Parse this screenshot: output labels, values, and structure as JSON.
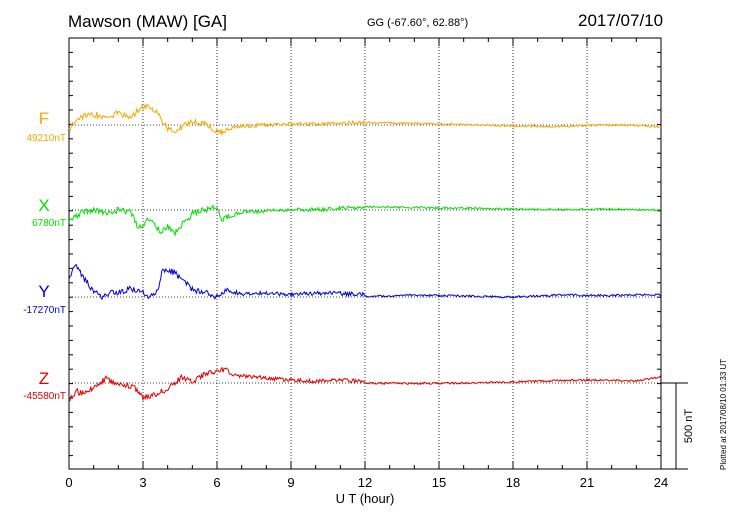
{
  "header": {
    "station": "Mawson (MAW)  [GA]",
    "coords": "GG (-67.60°,  62.88°)",
    "date": "2017/07/10"
  },
  "side_note": "Plotted at 2017/08/10 01:33 UT",
  "colors": {
    "F": "#f5a800",
    "X": "#00e000",
    "Y": "#0000d8",
    "Z": "#e00000"
  },
  "chart_data": {
    "type": "line",
    "title": "Mawson (MAW)  [GA]",
    "xlabel": "U T (hour)",
    "xlim": [
      0,
      24
    ],
    "xticks": [
      "0",
      "3",
      "6",
      "9",
      "12",
      "15",
      "18",
      "21",
      "24"
    ],
    "grid": "dotted vertical every 3 hours",
    "scale_bar": {
      "label": "500 nT",
      "value_nT": 500
    },
    "series": [
      {
        "name": "F",
        "baseline_label": "49210nT",
        "baseline": 49210,
        "x": [
          0,
          0.3,
          0.6,
          1,
          1.5,
          2,
          2.5,
          3,
          3.2,
          3.5,
          4,
          4.3,
          4.6,
          5,
          5.5,
          6,
          6.2,
          6.5,
          7,
          8,
          9,
          10,
          11,
          12,
          14,
          16,
          18,
          20,
          21,
          22,
          23,
          24
        ],
        "y": [
          49160,
          49280,
          49300,
          49320,
          49280,
          49330,
          49290,
          49395,
          49385,
          49350,
          49180,
          49130,
          49200,
          49250,
          49220,
          49150,
          49140,
          49180,
          49200,
          49210,
          49220,
          49215,
          49230,
          49235,
          49225,
          49215,
          49200,
          49195,
          49205,
          49210,
          49205,
          49190
        ]
      },
      {
        "name": "X",
        "baseline_label": "6780nT",
        "baseline": 6780,
        "x": [
          0,
          0.5,
          1,
          1.5,
          2,
          2.5,
          2.8,
          3,
          3.3,
          3.7,
          4,
          4.3,
          4.6,
          5,
          5.5,
          6,
          6.2,
          6.5,
          7,
          8,
          9,
          10,
          11,
          12,
          14,
          16,
          18,
          20,
          22,
          24
        ],
        "y": [
          6660,
          6760,
          6780,
          6740,
          6780,
          6760,
          6610,
          6640,
          6700,
          6560,
          6620,
          6540,
          6640,
          6740,
          6780,
          6800,
          6680,
          6720,
          6760,
          6770,
          6790,
          6780,
          6800,
          6810,
          6805,
          6800,
          6790,
          6785,
          6790,
          6780
        ]
      },
      {
        "name": "Y",
        "baseline_label": "-17270nT",
        "baseline": -17270,
        "x": [
          0,
          0.3,
          0.5,
          1,
          1.3,
          1.7,
          2,
          2.5,
          3,
          3.3,
          3.6,
          3.8,
          4,
          4.3,
          4.5,
          4.8,
          5,
          5.5,
          6,
          6.2,
          6.5,
          7,
          8,
          9,
          10,
          11,
          12,
          14,
          16,
          18,
          20,
          22,
          24
        ],
        "y": [
          -17140,
          -17000,
          -17110,
          -17270,
          -17330,
          -17280,
          -17300,
          -17240,
          -17290,
          -17330,
          -17250,
          -17050,
          -17060,
          -17090,
          -17150,
          -17200,
          -17260,
          -17270,
          -17330,
          -17300,
          -17250,
          -17280,
          -17270,
          -17290,
          -17270,
          -17275,
          -17285,
          -17270,
          -17280,
          -17290,
          -17270,
          -17275,
          -17265
        ]
      },
      {
        "name": "Z",
        "baseline_label": "-45580nT",
        "baseline": -45580,
        "x": [
          0,
          0.3,
          0.6,
          1,
          1.5,
          2,
          2.5,
          2.8,
          3,
          3.5,
          4,
          4.3,
          4.6,
          5,
          5.5,
          6,
          6.2,
          6.5,
          7,
          8,
          9,
          10,
          11,
          12,
          14,
          16,
          18,
          20,
          21,
          22,
          23,
          24
        ],
        "y": [
          -45800,
          -45720,
          -45750,
          -45680,
          -45600,
          -45650,
          -45670,
          -45720,
          -45790,
          -45750,
          -45700,
          -45630,
          -45580,
          -45620,
          -45550,
          -45520,
          -45500,
          -45530,
          -45550,
          -45570,
          -45590,
          -45600,
          -45595,
          -45600,
          -45605,
          -45600,
          -45590,
          -45575,
          -45570,
          -45575,
          -45580,
          -45540
        ]
      }
    ]
  }
}
